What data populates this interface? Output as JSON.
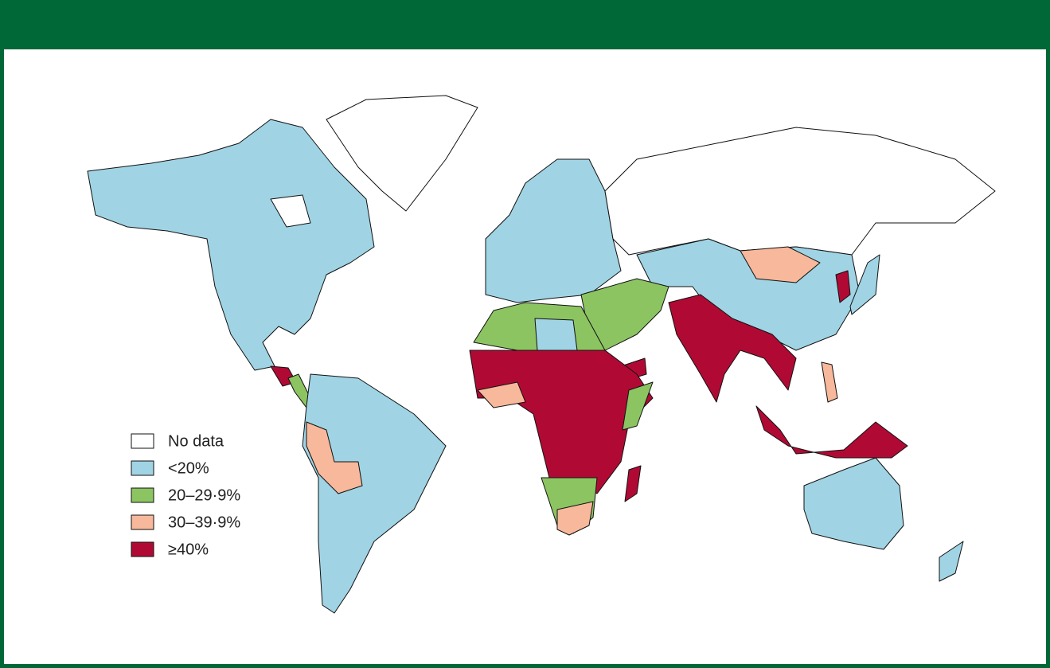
{
  "legend": {
    "items": [
      {
        "label": "No data",
        "color": "#ffffff"
      },
      {
        "label": "<20%",
        "color": "#a0d4e4"
      },
      {
        "label": "20–29·9%",
        "color": "#8cc462"
      },
      {
        "label": "30–39·9%",
        "color": "#f7b89b"
      },
      {
        "label": "≥40%",
        "color": "#b00a34"
      }
    ]
  }
}
